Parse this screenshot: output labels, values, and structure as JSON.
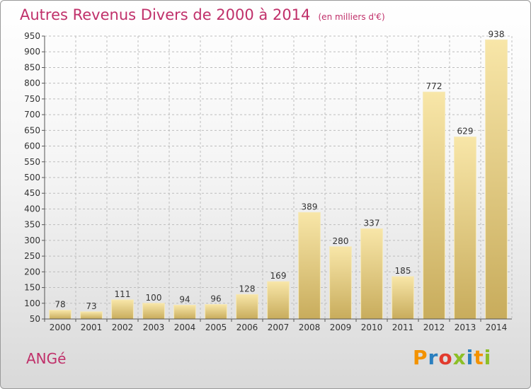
{
  "header": {
    "title": "Autres Revenus Divers de 2000 à 2014",
    "subtitle": "(en milliers d'€)"
  },
  "footer": {
    "place_name": "ANGé",
    "brand": {
      "letters": [
        "P",
        "r",
        "o",
        "x",
        "i",
        "t",
        "i"
      ]
    }
  },
  "colors": {
    "title": "#c0306a",
    "bar_light": "#f8e6a8",
    "bar_dark": "#c8ac5c",
    "grid": "#bdbdbd",
    "axis": "#555555",
    "brand_letters": [
      "#f39200",
      "#2a7fbf",
      "#e23b2e",
      "#8cbf26",
      "#2a7fbf",
      "#f39200",
      "#8cbf26"
    ]
  },
  "chart_data": {
    "type": "bar",
    "title": "Autres Revenus Divers de 2000 à 2014",
    "subtitle": "(en milliers d'€)",
    "categories": [
      "2000",
      "2001",
      "2002",
      "2003",
      "2004",
      "2005",
      "2006",
      "2007",
      "2008",
      "2009",
      "2010",
      "2011",
      "2012",
      "2013",
      "2014"
    ],
    "values": [
      78,
      73,
      111,
      100,
      94,
      96,
      128,
      169,
      389,
      280,
      337,
      185,
      772,
      629,
      938
    ],
    "ylim": [
      50,
      950
    ],
    "yticks": [
      50,
      100,
      150,
      200,
      250,
      300,
      350,
      400,
      450,
      500,
      550,
      600,
      650,
      700,
      750,
      800,
      850,
      900,
      950
    ],
    "grid": "horizontal dashed",
    "xlabel": "",
    "ylabel": ""
  }
}
